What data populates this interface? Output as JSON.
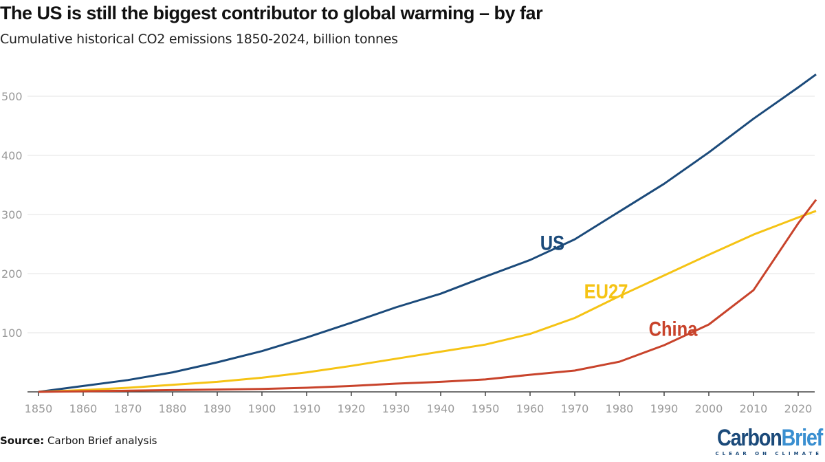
{
  "title": "The US is still the biggest contributor to global warming – by far",
  "subtitle": "Cumulative historical CO2 emissions 1850-2024, billion tonnes",
  "source_label": "Source:",
  "source_text": " Carbon Brief analysis",
  "logo": {
    "word1": "Carbon",
    "word2": "Brief",
    "tagline": "CLEAR ON CLIMATE"
  },
  "chart_data": {
    "type": "line",
    "title": "The US is still the biggest contributor to global warming – by far",
    "subtitle": "Cumulative historical CO2 emissions 1850-2024, billion tonnes",
    "xlim": [
      1850,
      2024
    ],
    "ylim": [
      0,
      540
    ],
    "xticks": [
      1850,
      1860,
      1870,
      1880,
      1890,
      1900,
      1910,
      1920,
      1930,
      1940,
      1950,
      1960,
      1970,
      1980,
      1990,
      2000,
      2010,
      2020
    ],
    "yticks": [
      100,
      200,
      300,
      400,
      500
    ],
    "grid": true,
    "x": [
      1850,
      1860,
      1870,
      1880,
      1890,
      1900,
      1910,
      1920,
      1930,
      1940,
      1950,
      1960,
      1970,
      1980,
      1990,
      2000,
      2010,
      2020,
      2024
    ],
    "series": [
      {
        "name": "US",
        "color": "#1b4a7a",
        "values": [
          0,
          10,
          20,
          33,
          50,
          69,
          92,
          117,
          143,
          166,
          195,
          223,
          258,
          305,
          352,
          405,
          462,
          515,
          537
        ]
      },
      {
        "name": "EU27",
        "color": "#f5c314",
        "values": [
          0,
          3,
          7,
          12,
          17,
          24,
          33,
          44,
          56,
          68,
          80,
          98,
          125,
          162,
          197,
          232,
          266,
          295,
          306
        ]
      },
      {
        "name": "China",
        "color": "#c8432b",
        "values": [
          0,
          1,
          2,
          3,
          4,
          5,
          7,
          10,
          14,
          17,
          21,
          29,
          36,
          51,
          79,
          114,
          172,
          285,
          325
        ]
      }
    ],
    "labels": [
      {
        "series": "US",
        "x": 1965,
        "y": 240
      },
      {
        "series": "EU27",
        "x": 1977,
        "y": 158
      },
      {
        "series": "China",
        "x": 1992,
        "y": 95
      }
    ]
  }
}
